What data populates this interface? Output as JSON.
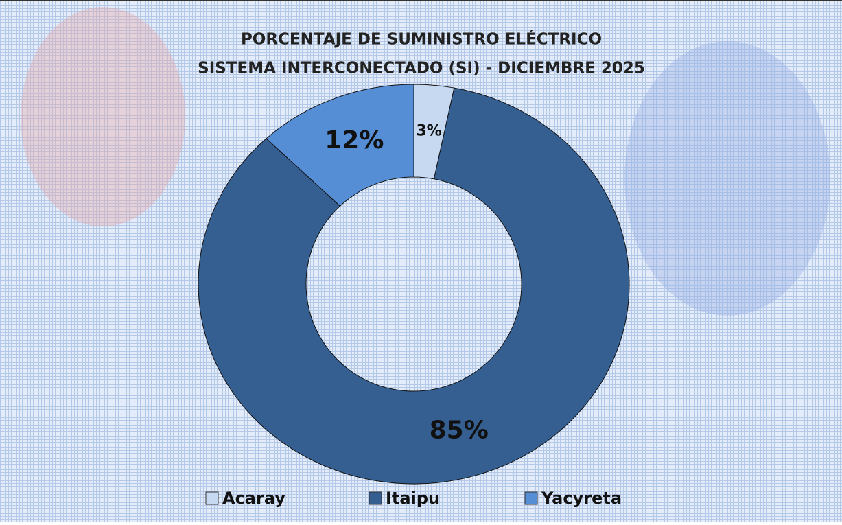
{
  "chart_data": {
    "type": "donut",
    "title": [
      "PORCENTAJE DE SUMINISTRO ELÉCTRICO",
      "SISTEMA INTERCONECTADO (SI) - DICIEMBRE 2025"
    ],
    "categories": [
      "Acaray",
      "Itaipu",
      "Yacyreta"
    ],
    "values": [
      3,
      85,
      12
    ],
    "value_labels": [
      "3%",
      "85%",
      "12%"
    ],
    "colors": [
      "#c6d9f1",
      "#365f91",
      "#558ed5"
    ],
    "legend": "bottom"
  }
}
